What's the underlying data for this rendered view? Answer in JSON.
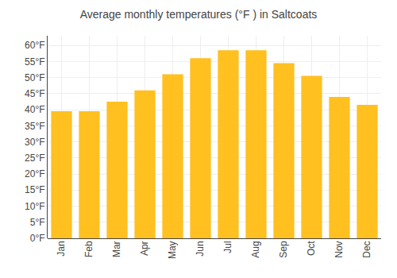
{
  "chart_data": {
    "type": "bar",
    "title": "Average monthly temperatures (°F ) in Saltcoats",
    "categories": [
      "Jan",
      "Feb",
      "Mar",
      "Apr",
      "May",
      "Jun",
      "Jul",
      "Aug",
      "Sep",
      "Oct",
      "Nov",
      "Dec"
    ],
    "values": [
      39.5,
      39.5,
      42.5,
      46.0,
      51.0,
      56.0,
      58.5,
      58.5,
      54.5,
      50.5,
      44.0,
      41.5
    ],
    "color": "#FFC020",
    "ylim": [
      0,
      63
    ],
    "yticks": [
      {
        "value": 0,
        "label": "0°F"
      },
      {
        "value": 5,
        "label": "5°F"
      },
      {
        "value": 10,
        "label": "10°F"
      },
      {
        "value": 15,
        "label": "15°F"
      },
      {
        "value": 20,
        "label": "20°F"
      },
      {
        "value": 25,
        "label": "25°F"
      },
      {
        "value": 30,
        "label": "30°F"
      },
      {
        "value": 35,
        "label": "35°F"
      },
      {
        "value": 40,
        "label": "40°F"
      },
      {
        "value": 45,
        "label": "45°F"
      },
      {
        "value": 50,
        "label": "50°F"
      },
      {
        "value": 55,
        "label": "55°F"
      },
      {
        "value": 60,
        "label": "60°F"
      }
    ],
    "grid": true
  }
}
